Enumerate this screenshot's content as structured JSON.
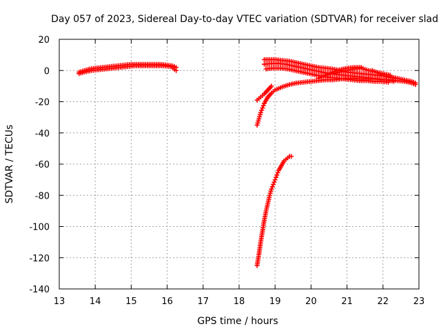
{
  "chart_data": {
    "type": "scatter",
    "title": "Day 057 of 2023, Sidereal Day-to-day VTEC variation (SDTVAR) for receiver slad",
    "xlabel": "GPS time / hours",
    "ylabel": "SDTVAR / TECUs",
    "xlim": [
      13,
      23
    ],
    "ylim": [
      -140,
      20
    ],
    "xticks": [
      13,
      14,
      15,
      16,
      17,
      18,
      19,
      20,
      21,
      22,
      23
    ],
    "yticks": [
      -140,
      -120,
      -100,
      -80,
      -60,
      -40,
      -20,
      0,
      20
    ],
    "grid": true,
    "marker": "+",
    "color": "#ff0000",
    "series": [
      {
        "x": [
          13.55,
          13.7,
          13.85,
          14.0,
          14.2,
          14.4,
          14.6,
          14.8,
          15.0,
          15.2,
          15.4,
          15.6,
          15.8,
          16.0,
          16.15,
          16.25
        ],
        "y": [
          -1,
          0,
          1,
          1.5,
          2,
          2.5,
          3,
          3.5,
          4,
          4,
          4,
          4,
          4,
          3.5,
          3,
          2
        ]
      },
      {
        "x": [
          13.55,
          13.7,
          13.9,
          14.1,
          14.3,
          14.5,
          14.7,
          14.9,
          15.1,
          15.3,
          15.5,
          15.7,
          15.9,
          16.1,
          16.25
        ],
        "y": [
          -2,
          -1,
          0,
          0.5,
          1,
          1.5,
          2,
          2.5,
          3,
          3,
          3,
          3,
          3,
          2.5,
          0
        ]
      },
      {
        "x": [
          18.5,
          18.55,
          18.6,
          18.65,
          18.7,
          18.75,
          18.8,
          18.9,
          19.0,
          19.2,
          19.4,
          19.6,
          19.8,
          20.0,
          20.2,
          20.4,
          20.6,
          20.8,
          21.0,
          21.2,
          21.4,
          21.6,
          21.8,
          22.0,
          22.2,
          22.4,
          22.6,
          22.8,
          22.9
        ],
        "y": [
          -35,
          -31,
          -27,
          -24,
          -21,
          -19,
          -17,
          -14.5,
          -12.5,
          -10.5,
          -9,
          -8,
          -7.5,
          -7,
          -6.5,
          -6,
          -6,
          -5.5,
          -5,
          -5,
          -5.5,
          -5.5,
          -5.5,
          -6,
          -6,
          -6.5,
          -7,
          -8,
          -9
        ]
      },
      {
        "x": [
          18.5,
          18.6,
          18.7,
          18.8,
          18.9
        ],
        "y": [
          -19,
          -17,
          -15,
          -12.5,
          -10
        ]
      },
      {
        "x": [
          18.5,
          18.55,
          18.6,
          18.65,
          18.7,
          18.75,
          18.8,
          18.85,
          18.9,
          18.95,
          19.0,
          19.05,
          19.1,
          19.15,
          19.2,
          19.25,
          19.3,
          19.35,
          19.4,
          19.45
        ],
        "y": [
          -125,
          -118,
          -110,
          -103,
          -96,
          -90,
          -85,
          -80,
          -76,
          -73,
          -70,
          -67,
          -64,
          -62,
          -60,
          -58,
          -57,
          -56,
          -55,
          -55
        ]
      },
      {
        "x": [
          18.7,
          18.8,
          19.0,
          19.2,
          19.4,
          19.6,
          19.8,
          20.0,
          20.2,
          20.4,
          20.6,
          20.8,
          21.0,
          21.2,
          21.4,
          21.6,
          21.8,
          22.0,
          22.2,
          22.4,
          22.6,
          22.8,
          22.9
        ],
        "y": [
          7,
          7,
          7,
          6.5,
          6,
          5,
          4,
          3,
          2,
          1.5,
          1,
          0,
          -1,
          -1.5,
          -2,
          -2.5,
          -3,
          -3.5,
          -4,
          -5,
          -6,
          -7,
          -8
        ]
      },
      {
        "x": [
          18.7,
          18.9,
          19.1,
          19.3,
          19.5,
          19.7,
          19.9,
          20.1,
          20.3,
          20.5,
          20.7,
          20.9,
          21.1,
          21.3,
          21.5,
          21.7,
          21.9,
          22.1,
          22.3
        ],
        "y": [
          4,
          4.5,
          4.5,
          4,
          3,
          2,
          1,
          0,
          -1,
          -2,
          -2.5,
          -3,
          -3.5,
          -4,
          -4.5,
          -5,
          -5.5,
          -6,
          -7
        ]
      },
      {
        "x": [
          18.75,
          18.95,
          19.15,
          19.35,
          19.55,
          19.75,
          19.95,
          20.15,
          20.35,
          20.55,
          20.75,
          20.95,
          21.15,
          21.35,
          21.55,
          21.75,
          21.95,
          22.15
        ],
        "y": [
          1,
          1.5,
          1.5,
          1,
          0,
          -1,
          -2,
          -3,
          -4,
          -4.5,
          -5,
          -5.5,
          -6,
          -6.5,
          -6.5,
          -7,
          -7,
          -7.5
        ]
      },
      {
        "x": [
          20.2,
          20.4,
          20.6,
          20.8,
          21.0,
          21.2,
          21.4
        ],
        "y": [
          -5,
          -3,
          -1,
          0.5,
          1.5,
          2,
          2
        ]
      },
      {
        "x": [
          20.4,
          20.6,
          20.8,
          21.0,
          21.2,
          21.4,
          21.6,
          21.8,
          22.0,
          22.2
        ],
        "y": [
          -3,
          -2,
          -1,
          0,
          1,
          1.5,
          0,
          -1,
          -2,
          -3
        ]
      },
      {
        "x": [
          21.7,
          21.8,
          21.9,
          22.0,
          22.1,
          22.2,
          22.3
        ],
        "y": [
          0,
          -1,
          -2,
          -3,
          -4,
          -4.5,
          -5
        ]
      }
    ]
  }
}
